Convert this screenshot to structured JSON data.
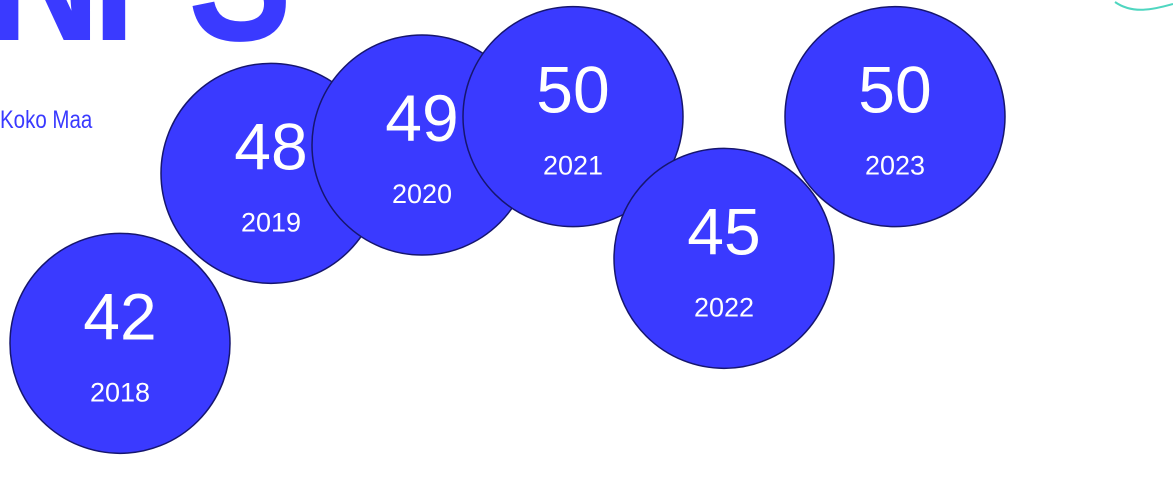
{
  "header": {
    "title_fragment": "NPS"
  },
  "colors": {
    "bubble": "#3a3aff",
    "bubble_outline": "#16166e",
    "accent_line": "#4fd6c0",
    "label_text": "#ffffff"
  },
  "chart_data": {
    "type": "scatter",
    "title": "",
    "xlabel": "",
    "ylabel": "",
    "series": [
      {
        "name": "Koko Maa",
        "points": [
          {
            "year": "2018",
            "value": 42
          },
          {
            "year": "2019",
            "value": 48
          },
          {
            "year": "2020",
            "value": 49
          },
          {
            "year": "2021",
            "value": 50
          },
          {
            "year": "2022",
            "value": 45
          },
          {
            "year": "2023",
            "value": 50
          }
        ]
      }
    ],
    "grid": false,
    "legend": "left"
  }
}
